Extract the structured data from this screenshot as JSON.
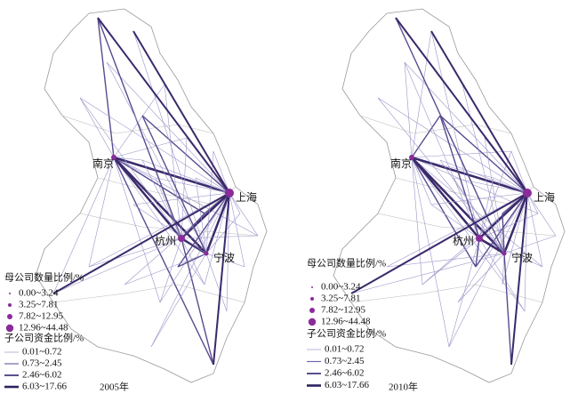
{
  "panels": [
    {
      "year_label": "2005年",
      "cities": [
        {
          "label": "南京"
        },
        {
          "label": "上海"
        },
        {
          "label": "杭州"
        },
        {
          "label": "宁波"
        }
      ],
      "legend": {
        "parent_title": "母公司数量比例/%",
        "parent_items": [
          "0.00~3.24",
          "3.25~7.81",
          "7.82~12.95",
          "12.96~44.48"
        ],
        "child_title": "子公司资金比例/%",
        "child_items": [
          "0.01~0.72",
          "0.73~2.45",
          "2.46~6.02",
          "6.03~17.66"
        ]
      }
    },
    {
      "year_label": "2010年",
      "cities": [
        {
          "label": "南京"
        },
        {
          "label": "上海"
        },
        {
          "label": "杭州"
        },
        {
          "label": "宁波"
        }
      ],
      "legend": {
        "parent_title": "母公司数量比例/%",
        "parent_items": [
          "0.00~3.24",
          "3.25~7.81",
          "7.82~12.95",
          "12.96~44.48"
        ],
        "child_title": "子公司资金比例/%",
        "child_items": [
          "0.01~0.72",
          "0.73~2.45",
          "2.46~6.02",
          "6.03~17.66"
        ]
      }
    }
  ]
}
